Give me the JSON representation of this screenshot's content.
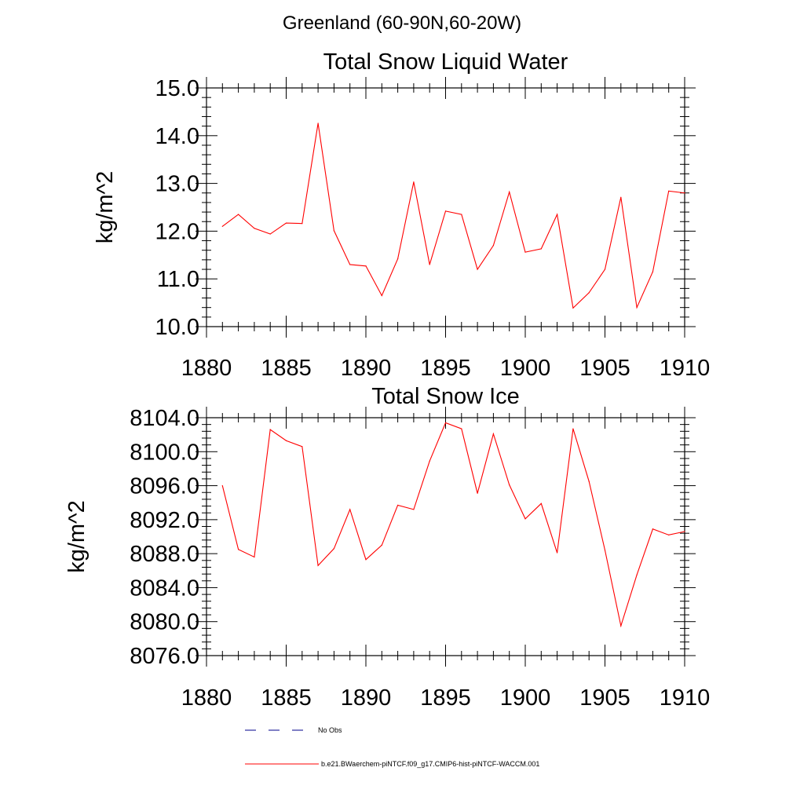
{
  "figure": {
    "suptitle": "Greenland (60-90N,60-20W)",
    "colors": {
      "model": "#ff0000",
      "obs": "#00008b",
      "axis": "#000000",
      "background": "#ffffff"
    },
    "legend": {
      "placement": "bottom",
      "entries": [
        {
          "label": "No Obs",
          "color": "#00008b",
          "style": "dashed"
        },
        {
          "label": "b.e21.BWaerchem-piNTCF.f09_g17.CMIP6-hist-piNTCF-WACCM.001",
          "color": "#ff0000",
          "style": "solid"
        }
      ]
    }
  },
  "chart_data": [
    {
      "type": "line",
      "title": "Total Snow Liquid Water",
      "xlabel": "",
      "ylabel": "kg/m^2",
      "xlim": [
        1880,
        1910
      ],
      "ylim": [
        10.0,
        15.0
      ],
      "xticks": [
        1880,
        1885,
        1890,
        1895,
        1900,
        1905,
        1910
      ],
      "xtick_labels": [
        "1880",
        "1885",
        "1890",
        "1895",
        "1900",
        "1905",
        "1910"
      ],
      "yticks": [
        10.0,
        11.0,
        12.0,
        13.0,
        14.0,
        15.0
      ],
      "ytick_labels": [
        "10.0",
        "11.0",
        "12.0",
        "13.0",
        "14.0",
        "15.0"
      ],
      "grid": false,
      "x": [
        1881,
        1882,
        1883,
        1884,
        1885,
        1886,
        1887,
        1888,
        1889,
        1890,
        1891,
        1892,
        1893,
        1894,
        1895,
        1896,
        1897,
        1898,
        1899,
        1900,
        1901,
        1902,
        1903,
        1904,
        1905,
        1906,
        1907,
        1908,
        1909,
        1910
      ],
      "series": [
        {
          "color": "#ff0000",
          "values": [
            12.1,
            12.35,
            12.06,
            11.94,
            12.17,
            12.16,
            14.26,
            12.01,
            11.3,
            11.27,
            10.65,
            11.42,
            13.03,
            11.3,
            12.42,
            12.35,
            11.2,
            11.7,
            12.82,
            11.56,
            11.63,
            12.35,
            10.39,
            10.71,
            11.2,
            12.71,
            10.4,
            11.15,
            12.84,
            12.8
          ]
        }
      ]
    },
    {
      "type": "line",
      "title": "Total Snow Ice",
      "xlabel": "",
      "ylabel": "kg/m^2",
      "xlim": [
        1880,
        1910
      ],
      "ylim": [
        8076.0,
        8104.0
      ],
      "xticks": [
        1880,
        1885,
        1890,
        1895,
        1900,
        1905,
        1910
      ],
      "xtick_labels": [
        "1880",
        "1885",
        "1890",
        "1895",
        "1900",
        "1905",
        "1910"
      ],
      "yticks": [
        8076.0,
        8080.0,
        8084.0,
        8088.0,
        8092.0,
        8096.0,
        8100.0,
        8104.0
      ],
      "ytick_labels": [
        "8076.0",
        "8080.0",
        "8084.0",
        "8088.0",
        "8092.0",
        "8096.0",
        "8100.0",
        "8104.0"
      ],
      "grid": false,
      "x": [
        1881,
        1882,
        1883,
        1884,
        1885,
        1886,
        1887,
        1888,
        1889,
        1890,
        1891,
        1892,
        1893,
        1894,
        1895,
        1896,
        1897,
        1898,
        1899,
        1900,
        1901,
        1902,
        1903,
        1904,
        1905,
        1906,
        1907,
        1908,
        1909,
        1910
      ],
      "series": [
        {
          "color": "#ff0000",
          "values": [
            8096.0,
            8088.5,
            8087.6,
            8102.6,
            8101.3,
            8100.6,
            8086.6,
            8088.6,
            8093.2,
            8087.3,
            8089.0,
            8093.7,
            8093.2,
            8098.9,
            8103.4,
            8102.7,
            8095.1,
            8102.1,
            8096.1,
            8092.1,
            8093.9,
            8088.1,
            8102.7,
            8096.5,
            8088.4,
            8079.5,
            8085.5,
            8090.9,
            8090.2,
            8090.6
          ]
        }
      ]
    }
  ]
}
